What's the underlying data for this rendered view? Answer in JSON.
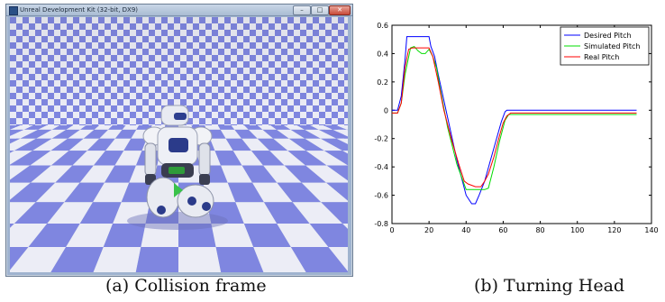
{
  "window": {
    "title": "Unreal Development Kit (32-bit, DX9)",
    "buttons": {
      "minimize": "–",
      "maximize": "□",
      "close": "✕"
    }
  },
  "captions": {
    "left": "(a) Collision frame",
    "right": "(b) Turning Head"
  },
  "colors": {
    "desired": "#0000ff",
    "simulated": "#00dd00",
    "real": "#ff0000",
    "checker_blue": "#7f86e0",
    "checker_white": "#ecedf6"
  },
  "chart_data": {
    "type": "line",
    "title": "",
    "xlabel": "",
    "ylabel": "",
    "xlim": [
      0,
      140
    ],
    "ylim": [
      -0.8,
      0.6
    ],
    "xticks": [
      0,
      20,
      40,
      60,
      80,
      100,
      120,
      140
    ],
    "yticks": [
      -0.8,
      -0.6,
      -0.4,
      -0.2,
      0,
      0.2,
      0.4,
      0.6
    ],
    "xtick_labels": [
      "0",
      "20",
      "40",
      "60",
      "80",
      "100",
      "120",
      "140"
    ],
    "ytick_labels": [
      "-0.8",
      "-0.6",
      "-0.4",
      "-0.2",
      "0",
      "0.2",
      "0.4",
      "0.6"
    ],
    "grid": false,
    "legend": "top-right",
    "series": [
      {
        "name": "Desired Pitch",
        "color": "#0000ff",
        "x": [
          0,
          3,
          5,
          7,
          8,
          20,
          21,
          23,
          25,
          30,
          35,
          40,
          43,
          45,
          47,
          50,
          53,
          56,
          59,
          61,
          62,
          132
        ],
        "y": [
          0,
          0,
          0.1,
          0.35,
          0.52,
          0.52,
          0.45,
          0.38,
          0.25,
          -0.05,
          -0.35,
          -0.6,
          -0.66,
          -0.66,
          -0.6,
          -0.5,
          -0.36,
          -0.22,
          -0.08,
          -0.01,
          0,
          0
        ]
      },
      {
        "name": "Simulated Pitch",
        "color": "#00dd00",
        "x": [
          0,
          3,
          5,
          7,
          10,
          12,
          14,
          16,
          18,
          20,
          22,
          24,
          26,
          30,
          35,
          40,
          45,
          50,
          52,
          55,
          58,
          61,
          63,
          132
        ],
        "y": [
          -0.02,
          -0.02,
          0.05,
          0.25,
          0.44,
          0.45,
          0.42,
          0.4,
          0.4,
          0.43,
          0.38,
          0.3,
          0.15,
          -0.12,
          -0.38,
          -0.56,
          -0.56,
          -0.56,
          -0.55,
          -0.4,
          -0.22,
          -0.07,
          -0.03,
          -0.03
        ]
      },
      {
        "name": "Real Pitch",
        "color": "#ff0000",
        "x": [
          0,
          3,
          5,
          7,
          9,
          11,
          14,
          17,
          20,
          22,
          25,
          28,
          32,
          36,
          39,
          41,
          45,
          48,
          50,
          52,
          55,
          58,
          60,
          62,
          64,
          132
        ],
        "y": [
          -0.02,
          -0.02,
          0.05,
          0.3,
          0.43,
          0.44,
          0.44,
          0.44,
          0.44,
          0.38,
          0.2,
          0.0,
          -0.2,
          -0.38,
          -0.5,
          -0.52,
          -0.54,
          -0.54,
          -0.5,
          -0.45,
          -0.33,
          -0.18,
          -0.09,
          -0.04,
          -0.02,
          -0.02
        ]
      }
    ]
  }
}
